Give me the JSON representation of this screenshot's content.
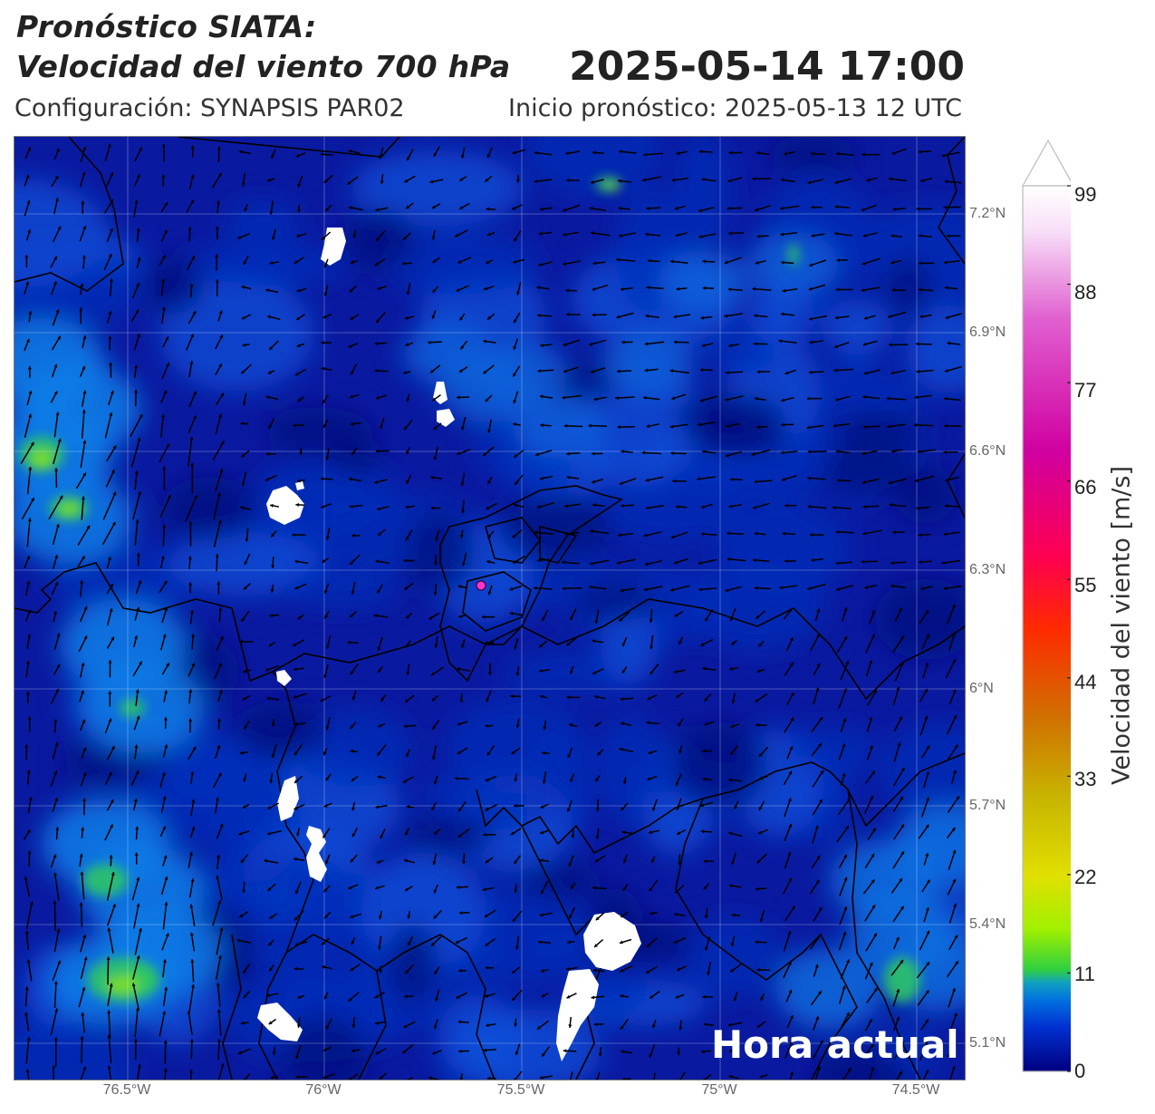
{
  "header": {
    "title_line1": "Pronóstico SIATA:",
    "title_line2": "Velocidad del viento 700 hPa",
    "datetime": "2025-05-14 17:00",
    "config": "Configuración: SYNAPSIS PAR02",
    "inicio": "Inicio pronóstico: 2025-05-13 12 UTC"
  },
  "map": {
    "lat_labels": [
      "7.2°N",
      "6.9°N",
      "6.6°N",
      "6.3°N",
      "6°N",
      "5.7°N",
      "5.4°N",
      "5.1°N"
    ],
    "lon_labels": [
      "76.5°W",
      "76°W",
      "75.5°W",
      "75°W",
      "74.5°W"
    ],
    "overlay_text": "Hora actual",
    "marker_color": "#ff33cc",
    "background_color": "#0a1aa0"
  },
  "colorbar": {
    "label": "Velocidad del viento [m/s]",
    "ticks": [
      "99",
      "88",
      "77",
      "66",
      "55",
      "44",
      "33",
      "22",
      "11",
      "0"
    ],
    "colors": [
      "#000080",
      "#0030d0",
      "#0070e0",
      "#10a0c0",
      "#30d040",
      "#a0f000",
      "#e0e000",
      "#c8b400",
      "#d07000",
      "#ff2a00",
      "#ff0050",
      "#d000a0",
      "#e060d0",
      "#f8e0f8",
      "#ffffff"
    ]
  }
}
